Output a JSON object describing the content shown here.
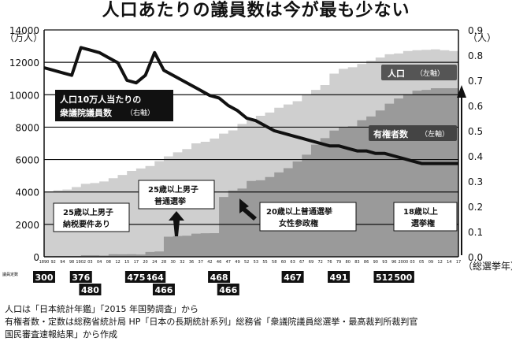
{
  "title": "人口あたりの議員数は今が最も少ない",
  "left_axis_unit": "（万人）",
  "right_axis_unit": "（人）",
  "x_axis_unit": "（総選挙年）",
  "seat_row_label": "議員定数",
  "labels": {
    "population": "人口",
    "population_axis": "（左軸）",
    "voters": "有権者数",
    "voters_axis": "（左軸）",
    "ratio_line1": "人口10万人当たりの",
    "ratio_line2": "衆議院議員数",
    "ratio_axis": "（右軸）",
    "era1_line1": "25歳以上男子",
    "era1_line2": "納税要件あり",
    "era2_line1": "25歳以上男子",
    "era2_line2": "普通選挙",
    "era3_line1": "20歳以上普通選挙",
    "era3_line2": "女性参政権",
    "era4_line1": "18歳以上",
    "era4_line2": "選挙権"
  },
  "notes": [
    "人口は「日本統計年鑑」「2015 年国勢調査」から",
    "有権者数・定数は総務省統計局 HP「日本の長期統計系列」総務省「衆議院議員総選挙・最高裁判所裁判官",
    "国民審査速報結果」から作成"
  ],
  "chart_data": {
    "type": "line",
    "title": "人口あたりの議員数は今が最も少ない",
    "xlabel": "（総選挙年）",
    "ylabel_left": "（万人）",
    "ylabel_right": "（人）",
    "ylim_left": [
      0,
      14000
    ],
    "ylim_right": [
      0,
      0.9
    ],
    "yticks_left": [
      "0",
      "2000",
      "4000",
      "6000",
      "8000",
      "10000",
      "12000",
      "14000"
    ],
    "yticks_right": [
      "0.0",
      "0.1",
      "0.2",
      "0.3",
      "0.4",
      "0.5",
      "0.6",
      "0.7",
      "0.8",
      "0.9"
    ],
    "x_tick_labels": [
      "1890",
      "92",
      "94",
      "98",
      "1902",
      "03",
      "04",
      "08",
      "12",
      "15",
      "17",
      "20",
      "24",
      "28",
      "30",
      "32",
      "36",
      "37",
      "42",
      "46",
      "47",
      "49",
      "52",
      "53",
      "55",
      "58",
      "60",
      "63",
      "67",
      "69",
      "72",
      "76",
      "79",
      "80",
      "83",
      "86",
      "90",
      "93",
      "96",
      "2000",
      "03",
      "05",
      "09",
      "12",
      "14",
      "17"
    ],
    "grid": true,
    "series": [
      {
        "name": "人口10万人当たりの衆議院議員数",
        "axis": "right",
        "x": [
          "1890",
          "92",
          "94",
          "98",
          "1902",
          "03",
          "04",
          "08",
          "12",
          "15",
          "17",
          "20",
          "24",
          "28",
          "30",
          "32",
          "36",
          "37",
          "42",
          "46",
          "47",
          "49",
          "52",
          "53",
          "55",
          "58",
          "60",
          "63",
          "67",
          "69",
          "72",
          "76",
          "79",
          "80",
          "83",
          "86",
          "90",
          "93",
          "96",
          "2000",
          "03",
          "05",
          "09",
          "12",
          "14",
          "17"
        ],
        "values": [
          0.75,
          0.74,
          0.73,
          0.72,
          0.83,
          0.82,
          0.81,
          0.79,
          0.77,
          0.7,
          0.69,
          0.72,
          0.81,
          0.74,
          0.72,
          0.7,
          0.68,
          0.66,
          0.64,
          0.63,
          0.6,
          0.58,
          0.55,
          0.54,
          0.52,
          0.5,
          0.49,
          0.48,
          0.47,
          0.46,
          0.45,
          0.44,
          0.44,
          0.43,
          0.42,
          0.42,
          0.41,
          0.41,
          0.4,
          0.39,
          0.38,
          0.37,
          0.37,
          0.37,
          0.37,
          0.37
        ]
      },
      {
        "name": "人口",
        "axis": "left",
        "x": [
          "1890",
          "92",
          "94",
          "98",
          "1902",
          "03",
          "04",
          "08",
          "12",
          "15",
          "17",
          "20",
          "24",
          "28",
          "30",
          "32",
          "36",
          "37",
          "42",
          "46",
          "47",
          "49",
          "52",
          "53",
          "55",
          "58",
          "60",
          "63",
          "67",
          "69",
          "72",
          "76",
          "79",
          "80",
          "83",
          "86",
          "90",
          "93",
          "96",
          "2000",
          "03",
          "05",
          "09",
          "12",
          "14",
          "17"
        ],
        "values": [
          4000,
          4100,
          4150,
          4300,
          4500,
          4550,
          4650,
          4850,
          5050,
          5300,
          5450,
          5600,
          5900,
          6200,
          6450,
          6650,
          7000,
          7100,
          7300,
          7600,
          7800,
          8200,
          8500,
          8700,
          8900,
          9200,
          9400,
          9600,
          10000,
          10300,
          10600,
          11300,
          11600,
          11700,
          11900,
          12100,
          12300,
          12500,
          12550,
          12700,
          12750,
          12770,
          12800,
          12750,
          12700,
          12650
        ]
      },
      {
        "name": "有権者数",
        "axis": "left",
        "x": [
          "1890",
          "92",
          "94",
          "98",
          "1902",
          "03",
          "04",
          "08",
          "12",
          "15",
          "17",
          "20",
          "24",
          "28",
          "30",
          "32",
          "36",
          "37",
          "42",
          "46",
          "47",
          "49",
          "52",
          "53",
          "55",
          "58",
          "60",
          "63",
          "67",
          "69",
          "72",
          "76",
          "79",
          "80",
          "83",
          "86",
          "90",
          "93",
          "96",
          "2000",
          "03",
          "05",
          "09",
          "12",
          "14",
          "17"
        ],
        "values": [
          45,
          46,
          46,
          50,
          98,
          98,
          76,
          159,
          150,
          155,
          140,
          300,
          330,
          1240,
          1280,
          1300,
          1430,
          1450,
          1460,
          3690,
          4090,
          4210,
          4680,
          4720,
          4920,
          5210,
          5470,
          5880,
          6300,
          6920,
          7320,
          7790,
          8020,
          8060,
          8430,
          8660,
          9030,
          9450,
          9770,
          10040,
          10250,
          10300,
          10400,
          10400,
          10400,
          10610
        ]
      }
    ],
    "seats": [
      {
        "x": "1890",
        "value": 300,
        "row": "top"
      },
      {
        "x": "1902",
        "value": 376,
        "row": "top"
      },
      {
        "x": "28",
        "value": 466,
        "row": "bottom"
      },
      {
        "x": "24",
        "value": 464,
        "row": "top"
      },
      {
        "x": "46",
        "value": 468,
        "row": "top"
      },
      {
        "x": "47",
        "value": 466,
        "row": "bottom"
      },
      {
        "x": "63",
        "value": 467,
        "row": "top"
      },
      {
        "x": "79",
        "value": 491,
        "row": "top"
      },
      {
        "x": "93",
        "value": 512,
        "row": "top"
      },
      {
        "x": "2000",
        "value": 500,
        "row": "top"
      },
      {
        "x": "03",
        "value": 480,
        "row": "bottom"
      },
      {
        "x": "17",
        "value": 475,
        "row": "top"
      }
    ],
    "annotations": [
      "25歳以上男子 納税要件あり",
      "25歳以上男子 普通選挙",
      "20歳以上普通選挙 女性参政権",
      "18歳以上 選挙権"
    ]
  }
}
